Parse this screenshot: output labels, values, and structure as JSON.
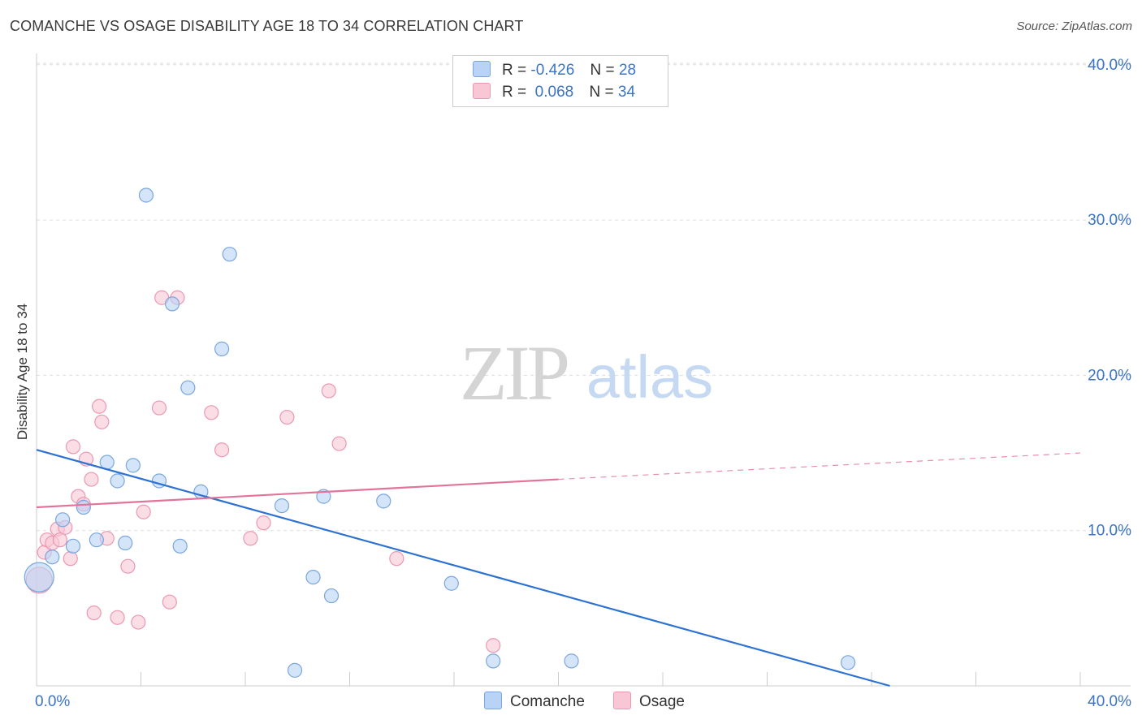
{
  "header": {
    "title": "COMANCHE VS OSAGE DISABILITY AGE 18 TO 34 CORRELATION CHART",
    "source": "Source: ZipAtlas.com"
  },
  "watermark": {
    "zip": "ZIP",
    "atlas": "atlas"
  },
  "legend": {
    "rows": [
      {
        "r_label": "R =",
        "r_value": "-0.426",
        "n_label": "N =",
        "n_value": "28"
      },
      {
        "r_label": "R =",
        "r_value": " 0.068",
        "n_label": "N =",
        "n_value": "34"
      }
    ]
  },
  "colors": {
    "comanche_fill": "#b8d3f5",
    "comanche_stroke": "#7aa6de",
    "comanche_line": "#2d72d2",
    "osage_fill": "#f9c6d5",
    "osage_stroke": "#ec98b2",
    "osage_line": "#e2739a",
    "tick_text": "#3b73c5",
    "grid": "#dddddd"
  },
  "chart_data": {
    "type": "scatter",
    "title": "COMANCHE VS OSAGE DISABILITY AGE 18 TO 34 CORRELATION CHART",
    "xlabel": "",
    "ylabel": "Disability Age 18 to 34",
    "xlim": [
      0,
      40
    ],
    "ylim": [
      0,
      42
    ],
    "x_tick_labels": [
      "0.0%",
      "40.0%"
    ],
    "y_ticks": [
      10,
      20,
      30,
      40
    ],
    "y_tick_labels": [
      "10.0%",
      "20.0%",
      "30.0%",
      "40.0%"
    ],
    "grid": true,
    "legend_position": "top-center",
    "series": [
      {
        "name": "Comanche",
        "r": -0.426,
        "n": 28,
        "trend": {
          "x0": 0,
          "y0": 15.2,
          "x1": 32.7,
          "y1": 0
        },
        "points": [
          {
            "x": 0.1,
            "y": 7.0,
            "s": 18
          },
          {
            "x": 0.6,
            "y": 8.3
          },
          {
            "x": 1.0,
            "y": 10.7
          },
          {
            "x": 1.4,
            "y": 9.0
          },
          {
            "x": 1.8,
            "y": 11.5
          },
          {
            "x": 2.3,
            "y": 9.4
          },
          {
            "x": 2.7,
            "y": 14.4
          },
          {
            "x": 3.1,
            "y": 13.2
          },
          {
            "x": 3.4,
            "y": 9.2
          },
          {
            "x": 3.7,
            "y": 14.2
          },
          {
            "x": 4.2,
            "y": 31.6
          },
          {
            "x": 4.7,
            "y": 13.2
          },
          {
            "x": 5.2,
            "y": 24.6
          },
          {
            "x": 5.5,
            "y": 9.0
          },
          {
            "x": 5.8,
            "y": 19.2
          },
          {
            "x": 6.3,
            "y": 12.5
          },
          {
            "x": 7.1,
            "y": 21.7
          },
          {
            "x": 7.4,
            "y": 27.8
          },
          {
            "x": 9.4,
            "y": 11.6
          },
          {
            "x": 9.9,
            "y": 1.0
          },
          {
            "x": 10.6,
            "y": 7.0
          },
          {
            "x": 11.0,
            "y": 12.2
          },
          {
            "x": 11.3,
            "y": 5.8
          },
          {
            "x": 13.3,
            "y": 11.9
          },
          {
            "x": 15.9,
            "y": 6.6
          },
          {
            "x": 17.5,
            "y": 1.6
          },
          {
            "x": 20.5,
            "y": 1.6
          },
          {
            "x": 31.1,
            "y": 1.5
          }
        ]
      },
      {
        "name": "Osage",
        "r": 0.068,
        "n": 34,
        "trend_solid": {
          "x0": 0,
          "y0": 11.5,
          "x1": 20.0,
          "y1": 13.3
        },
        "trend_dashed": {
          "x0": 20.0,
          "y0": 13.3,
          "x1": 40.0,
          "y1": 15.0
        },
        "points": [
          {
            "x": 0.1,
            "y": 6.8,
            "s": 16
          },
          {
            "x": 0.3,
            "y": 8.6
          },
          {
            "x": 0.4,
            "y": 9.4
          },
          {
            "x": 0.6,
            "y": 9.2
          },
          {
            "x": 0.8,
            "y": 10.1
          },
          {
            "x": 0.9,
            "y": 9.4
          },
          {
            "x": 1.1,
            "y": 10.2
          },
          {
            "x": 1.3,
            "y": 8.2
          },
          {
            "x": 1.4,
            "y": 15.4
          },
          {
            "x": 1.6,
            "y": 12.2
          },
          {
            "x": 1.8,
            "y": 11.7
          },
          {
            "x": 1.9,
            "y": 14.6
          },
          {
            "x": 2.1,
            "y": 13.3
          },
          {
            "x": 2.2,
            "y": 4.7
          },
          {
            "x": 2.4,
            "y": 18.0
          },
          {
            "x": 2.5,
            "y": 17.0
          },
          {
            "x": 2.7,
            "y": 9.5
          },
          {
            "x": 3.1,
            "y": 4.4
          },
          {
            "x": 3.5,
            "y": 7.7
          },
          {
            "x": 3.9,
            "y": 4.1
          },
          {
            "x": 4.1,
            "y": 11.2
          },
          {
            "x": 4.7,
            "y": 17.9
          },
          {
            "x": 4.8,
            "y": 25.0
          },
          {
            "x": 5.1,
            "y": 5.4
          },
          {
            "x": 5.4,
            "y": 25.0
          },
          {
            "x": 6.7,
            "y": 17.6
          },
          {
            "x": 7.1,
            "y": 15.2
          },
          {
            "x": 8.2,
            "y": 9.5
          },
          {
            "x": 8.7,
            "y": 10.5
          },
          {
            "x": 9.6,
            "y": 17.3
          },
          {
            "x": 11.2,
            "y": 19.0
          },
          {
            "x": 11.6,
            "y": 15.6
          },
          {
            "x": 13.8,
            "y": 8.2
          },
          {
            "x": 17.5,
            "y": 2.6
          }
        ]
      }
    ]
  }
}
